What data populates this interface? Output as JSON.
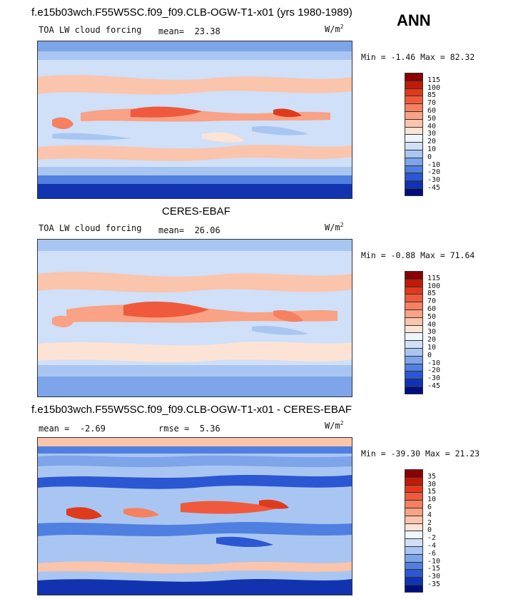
{
  "season": "ANN",
  "panel1": {
    "title": "f.e15b03wch.F55W5SC.f09_f09.CLB-OGW-T1-x01 (yrs 1980-1989)",
    "variable": "TOA LW cloud forcing",
    "mean_label": "mean=",
    "mean_value": "23.38",
    "units_base": "W/m",
    "units_exp": "2",
    "min_label": "Min =",
    "min_value": "-1.46",
    "max_label": "Max =",
    "max_value": "82.32"
  },
  "panel2": {
    "title": "CERES-EBAF",
    "variable": "TOA LW cloud forcing",
    "mean_label": "mean=",
    "mean_value": "26.06",
    "units_base": "W/m",
    "units_exp": "2",
    "min_label": "Min =",
    "min_value": "-0.88",
    "max_label": "Max =",
    "max_value": "71.64"
  },
  "panel3": {
    "title": "f.e15b03wch.F55W5SC.f09_f09.CLB-OGW-T1-x01 - CERES-EBAF",
    "mean_label": "mean =",
    "mean_value": "-2.69",
    "rmse_label": "rmse =",
    "rmse_value": "5.36",
    "units_base": "W/m",
    "units_exp": "2",
    "min_label": "Min =",
    "min_value": "-39.30",
    "max_label": "Max =",
    "max_value": "21.23"
  },
  "colorbar_abs": {
    "labels": [
      "115",
      "100",
      "85",
      "70",
      "60",
      "50",
      "40",
      "30",
      "20",
      "10",
      "0",
      "-10",
      "-20",
      "-30",
      "-45"
    ],
    "colors": [
      "#8b0000",
      "#c01a08",
      "#e03a1c",
      "#f05a3c",
      "#f68060",
      "#f9a285",
      "#fbc4ac",
      "#fde3d5",
      "#eef5fd",
      "#cfe0f8",
      "#a9c6f2",
      "#7ea4ea",
      "#4f7fe0",
      "#2b57d2",
      "#1233b0",
      "#000f80"
    ]
  },
  "colorbar_diff": {
    "labels": [
      "35",
      "30",
      "15",
      "10",
      "6",
      "4",
      "2",
      "0",
      "-2",
      "-4",
      "-6",
      "-10",
      "-15",
      "-30",
      "-35"
    ],
    "colors": [
      "#8b0000",
      "#c01a08",
      "#e03a1c",
      "#f05a3c",
      "#f68060",
      "#f9a285",
      "#fbc4ac",
      "#fde3d5",
      "#eef5fd",
      "#cfe0f8",
      "#a9c6f2",
      "#7ea4ea",
      "#4f7fe0",
      "#2b57d2",
      "#1233b0",
      "#000f80"
    ]
  }
}
